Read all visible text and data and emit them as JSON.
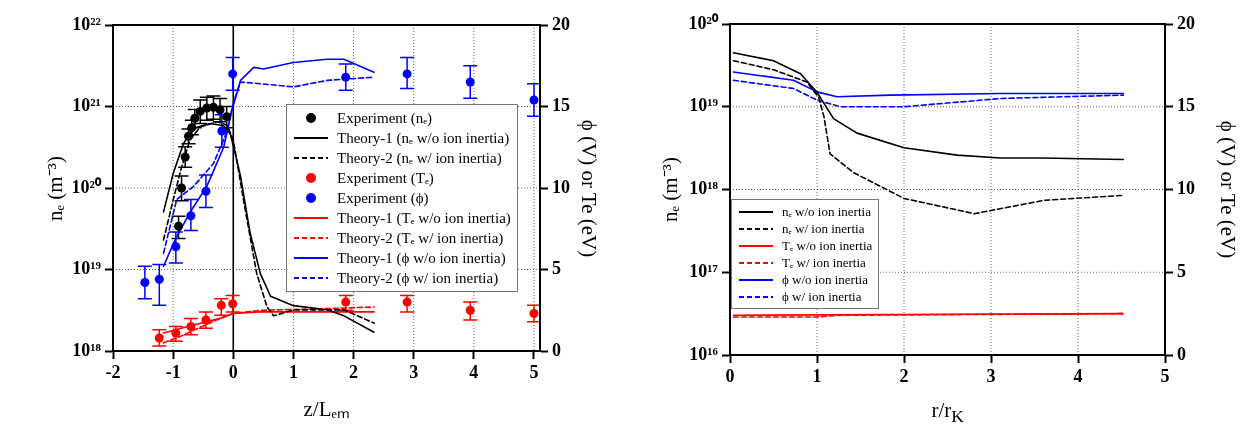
{
  "chart_data": [
    {
      "type": "line",
      "xlabel": "z/Lₑₘ",
      "ylabel": "nₑ (m⁻³)",
      "y2label": "ϕ (V) or Te (eV)",
      "xlim": [
        -2,
        5.1
      ],
      "xticks": [
        -2,
        -1,
        0,
        1,
        2,
        3,
        4,
        5
      ],
      "ylim": [
        1e+18,
        1e+22
      ],
      "yticks": [
        {
          "value": 1e+18,
          "label": "10¹⁸"
        },
        {
          "value": 1e+19,
          "label": "10¹⁹"
        },
        {
          "value": 1e+20,
          "label": "10²⁰"
        },
        {
          "value": 1e+21,
          "label": "10²¹"
        },
        {
          "value": 1e+22,
          "label": "10²²"
        }
      ],
      "y2lim": [
        0,
        20
      ],
      "y2ticks": [
        0,
        5,
        10,
        15,
        20
      ],
      "log": "y",
      "grid": true,
      "legend": "right",
      "ref_lines": [
        {
          "axis": "x",
          "value": 0,
          "color": "#000000"
        }
      ],
      "series": [
        {
          "name": "Experiment (nₑ)",
          "type": "scatter",
          "marker": "circle",
          "color": "#000000",
          "x": [
            -0.91,
            -0.86,
            -0.8,
            -0.745,
            -0.69,
            -0.64,
            -0.55,
            -0.44,
            -0.33,
            -0.22,
            -0.11
          ],
          "values": [
            3.4e+19,
            1e+20,
            2.4e+20,
            4.3e+20,
            5.5e+20,
            7.2e+20,
            8.7e+20,
            9.6e+20,
            9.8e+20,
            9.1e+20,
            7.5e+20
          ],
          "errors": [
            [
              2.4e+19,
              4.5e+19
            ],
            [
              7e+19,
              1.4e+20
            ],
            [
              1.8e+20,
              3.2e+20
            ],
            [
              3.5e+20,
              5.3e+20
            ],
            [
              4.5e+20,
              6.8e+20
            ],
            [
              5.5e+20,
              9.2e+20
            ],
            [
              6.2e+20,
              1.2e+21
            ],
            [
              6.8e+20,
              1.3e+21
            ],
            [
              7e+20,
              1.35e+21
            ],
            [
              6.5e+20,
              1.25e+21
            ],
            [
              5.5e+20,
              1e+21
            ]
          ]
        },
        {
          "name": "Theory-1 (nₑ w/o ion inertia)",
          "type": "line",
          "line_style": "solid",
          "color": "#000000",
          "x": [
            -1.16,
            -1.0,
            -0.83,
            -0.66,
            -0.38,
            -0.16,
            -0.05,
            0.02,
            0.12,
            0.28,
            0.45,
            0.62,
            1.0,
            1.56,
            1.84,
            2.34
          ],
          "values": [
            5.1e+19,
            1.5e+20,
            3.5e+20,
            5.4e+20,
            6.2e+20,
            5.8e+20,
            4.6e+20,
            2.9e+20,
            1.4e+20,
            2.8e+19,
            8.9e+18,
            4.7e+18,
            3.6e+18,
            3.2e+18,
            2.7e+18,
            1.7e+18
          ]
        },
        {
          "name": "Theory-2 (nₑ w/ ion inertia)",
          "type": "line",
          "line_style": "dashed",
          "color": "#000000",
          "x": [
            -1.16,
            -1.0,
            -0.86,
            -0.72,
            -0.55,
            -0.27,
            -0.1,
            0.0,
            0.17,
            0.39,
            0.56,
            0.67,
            1.0,
            1.84,
            2.12,
            2.34
          ],
          "values": [
            2.3e+19,
            7.1e+19,
            1.8e+20,
            3.9e+20,
            5.6e+20,
            6.5e+20,
            5.9e+20,
            3.9e+20,
            7.1e+19,
            8.9e+18,
            3.5e+18,
            2.7e+18,
            3.2e+18,
            3.2e+18,
            2.6e+18,
            2.2e+18
          ]
        },
        {
          "name": "Experiment (Tₑ)",
          "type": "scatter",
          "marker": "circle",
          "axis": "y2",
          "color": "#ff0000",
          "x": [
            -1.23,
            -0.955,
            -0.705,
            -0.455,
            -0.2,
            -0.01,
            1.87,
            2.89,
            3.94,
            5.0
          ],
          "values": [
            0.8,
            1.1,
            1.5,
            1.9,
            2.8,
            2.9,
            3.0,
            3.0,
            2.5,
            2.3
          ],
          "errors": [
            [
              0.3,
              1.3
            ],
            [
              0.6,
              1.5
            ],
            [
              1.0,
              2.0
            ],
            [
              1.4,
              2.4
            ],
            [
              2.2,
              3.2
            ],
            [
              2.4,
              3.4
            ],
            [
              2.5,
              3.4
            ],
            [
              2.4,
              3.4
            ],
            [
              1.9,
              3.0
            ],
            [
              1.8,
              2.8
            ]
          ]
        },
        {
          "name": "Experiment (ϕ)",
          "type": "scatter",
          "marker": "circle",
          "axis": "y2",
          "color": "#0000ff",
          "x": [
            -1.47,
            -1.23,
            -0.955,
            -0.705,
            -0.455,
            -0.19,
            -0.01,
            1.87,
            2.89,
            3.94,
            5.0
          ],
          "values": [
            4.2,
            4.4,
            6.4,
            8.3,
            9.8,
            13.5,
            17.0,
            16.8,
            17.0,
            16.5,
            15.4
          ],
          "errors": [
            [
              3.2,
              5.2
            ],
            [
              2.8,
              5.3
            ],
            [
              5.4,
              7.3
            ],
            [
              7.4,
              9.3
            ],
            [
              8.8,
              10.8
            ],
            [
              12.5,
              14.5
            ],
            [
              16.0,
              18.0
            ],
            [
              16.0,
              17.6
            ],
            [
              16.1,
              18.0
            ],
            [
              15.5,
              17.5
            ],
            [
              14.4,
              16.4
            ]
          ]
        },
        {
          "name": "Theory-1 (Tₑ w/o ion inertia)",
          "type": "line",
          "line_style": "solid",
          "axis": "y2",
          "color": "#ff0000",
          "x": [
            -1.16,
            -0.66,
            -0.22,
            0.0,
            0.45,
            1.0,
            2.34
          ],
          "values": [
            1.1,
            1.6,
            2.0,
            2.3,
            2.4,
            2.4,
            2.4
          ]
        },
        {
          "name": "Theory-2 (Tₑ w/ ion inertia)",
          "type": "line",
          "line_style": "dashed",
          "axis": "y2",
          "color": "#ff0000",
          "x": [
            -1.16,
            -0.94,
            -0.22,
            0.0,
            0.45,
            1.56,
            2.34
          ],
          "values": [
            0.5,
            0.8,
            2.0,
            2.3,
            2.5,
            2.6,
            2.7
          ]
        },
        {
          "name": "Theory-1 (ϕ w/o ion inertia)",
          "type": "line",
          "line_style": "solid",
          "axis": "y2",
          "color": "#0000ff",
          "x": [
            -1.16,
            -0.97,
            -0.72,
            -0.44,
            -0.16,
            -0.02,
            0.12,
            0.34,
            0.5,
            1.0,
            1.56,
            1.84,
            2.34
          ],
          "values": [
            5.2,
            6.8,
            8.5,
            10.1,
            12.5,
            14.8,
            16.6,
            17.4,
            17.3,
            17.7,
            17.9,
            17.9,
            17.1
          ]
        },
        {
          "name": "Theory-2 (ϕ w/ ion inertia)",
          "type": "line",
          "line_style": "dashed",
          "axis": "y2",
          "color": "#0000ff",
          "x": [
            -1.16,
            -0.94,
            -0.66,
            -0.33,
            -0.11,
            0.0,
            0.12,
            0.45,
            1.0,
            1.56,
            2.34
          ],
          "values": [
            6.0,
            9.3,
            10.1,
            11.5,
            13.4,
            15.2,
            16.5,
            16.4,
            16.2,
            16.6,
            16.8
          ]
        }
      ]
    },
    {
      "type": "line",
      "xlabel": "r/r$_{K}$",
      "ylabel": "nₑ (m⁻³)",
      "y2label": "ϕ (V) or Te (eV)",
      "xlim": [
        0,
        5
      ],
      "xticks": [
        0,
        1,
        2,
        3,
        4,
        5
      ],
      "ylim": [
        1e+16,
        1e+20
      ],
      "yticks": [
        {
          "value": 1e+16,
          "label": "10¹⁶"
        },
        {
          "value": 1e+17,
          "label": "10¹⁷"
        },
        {
          "value": 1e+18,
          "label": "10¹⁸"
        },
        {
          "value": 1e+19,
          "label": "10¹⁹"
        },
        {
          "value": 1e+20,
          "label": "10²⁰"
        }
      ],
      "y2lim": [
        0,
        20
      ],
      "y2ticks": [
        0,
        5,
        10,
        15,
        20
      ],
      "log": "y",
      "grid": true,
      "legend": "bottom left",
      "series": [
        {
          "name": "nₑ w/o ion inertia",
          "line_style": "solid",
          "color": "#000000",
          "x": [
            0.04,
            0.5,
            0.81,
            1.0,
            1.19,
            1.46,
            2.0,
            2.61,
            3.11,
            3.58,
            4.52
          ],
          "values": [
            4.5e+19,
            3.6e+19,
            2.5e+19,
            1.5e+19,
            7.2e+18,
            4.8e+18,
            3.2e+18,
            2.6e+18,
            2.4e+18,
            2.4e+18,
            2.3e+18
          ]
        },
        {
          "name": "nₑ w/ ion inertia",
          "line_style": "dashed",
          "color": "#000000",
          "x": [
            0.04,
            0.5,
            0.88,
            1.02,
            1.08,
            1.15,
            1.42,
            2.0,
            2.81,
            3.61,
            4.52
          ],
          "values": [
            3.6e+19,
            2.8e+19,
            2e+19,
            1.3e+19,
            7.6e+18,
            2.7e+18,
            1.6e+18,
            7.8e+17,
            5.1e+17,
            7.4e+17,
            8.5e+17
          ]
        },
        {
          "name": "Tₑ w/o ion inertia",
          "line_style": "solid",
          "axis": "y2",
          "color": "#ff0000",
          "x": [
            0.04,
            4.52
          ],
          "values": [
            2.4,
            2.5
          ]
        },
        {
          "name": "Tₑ w/ ion inertia",
          "line_style": "dashed",
          "axis": "y2",
          "color": "#ff0000",
          "x": [
            0.04,
            1.0,
            1.27,
            4.52
          ],
          "values": [
            2.3,
            2.3,
            2.4,
            2.5
          ]
        },
        {
          "name": "ϕ w/o ion inertia",
          "line_style": "solid",
          "axis": "y2",
          "color": "#0000ff",
          "x": [
            0.04,
            0.73,
            1.0,
            1.23,
            1.84,
            3.11,
            4.52
          ],
          "values": [
            17.1,
            16.6,
            15.9,
            15.6,
            15.7,
            15.8,
            15.8
          ]
        },
        {
          "name": "ϕ w/ ion inertia",
          "line_style": "dashed",
          "axis": "y2",
          "color": "#0000ff",
          "x": [
            0.04,
            0.73,
            1.0,
            1.27,
            2.0,
            3.11,
            4.52
          ],
          "values": [
            16.6,
            16.1,
            15.4,
            15.0,
            15.0,
            15.5,
            15.7
          ]
        }
      ]
    }
  ]
}
